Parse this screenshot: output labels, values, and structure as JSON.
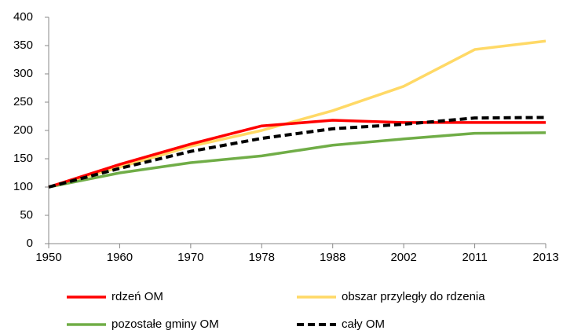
{
  "chart_data": {
    "type": "line",
    "categories": [
      "1950",
      "1960",
      "1970",
      "1978",
      "1988",
      "2002",
      "2011",
      "2013"
    ],
    "series": [
      {
        "name": "rdzeń OM",
        "color": "#ff0000",
        "dashed": false,
        "values": [
          100,
          140,
          176,
          208,
          218,
          214,
          214,
          214
        ]
      },
      {
        "name": "obszar przyległy do rdzenia",
        "color": "#ffd966",
        "dashed": false,
        "values": [
          100,
          135,
          172,
          200,
          235,
          278,
          343,
          358
        ]
      },
      {
        "name": "pozostałe gminy OM",
        "color": "#70ad47",
        "dashed": false,
        "values": [
          100,
          125,
          143,
          155,
          174,
          185,
          195,
          196
        ]
      },
      {
        "name": "cały OM",
        "color": "#000000",
        "dashed": true,
        "values": [
          100,
          133,
          163,
          186,
          203,
          211,
          222,
          223
        ]
      }
    ],
    "ylim": [
      0,
      400
    ],
    "yticks": [
      0,
      50,
      100,
      150,
      200,
      250,
      300,
      350,
      400
    ],
    "grid": false
  }
}
